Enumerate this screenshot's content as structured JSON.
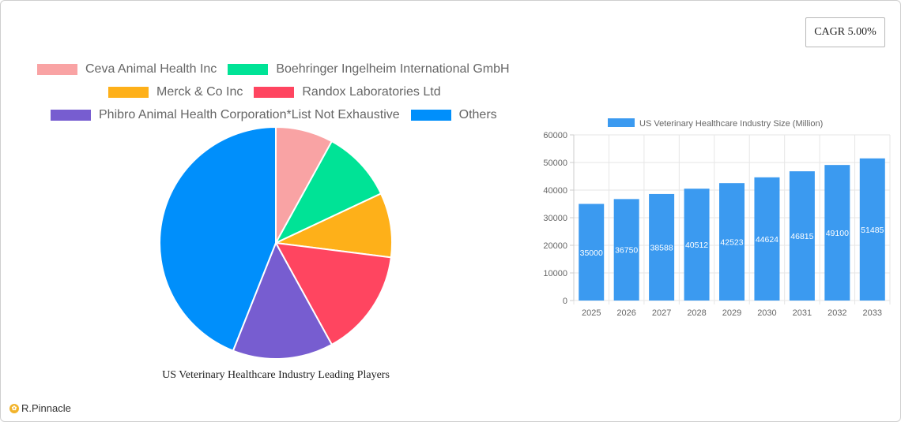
{
  "cagr": {
    "label": "CAGR 5.00%"
  },
  "brand": {
    "name": "R.Pinnacle"
  },
  "chart_data": [
    {
      "type": "pie",
      "title": "US Veterinary Healthcare Industry Leading Players",
      "categories": [
        "Ceva Animal Health Inc",
        "Boehringer Ingelheim International GmbH",
        "Merck & Co  Inc",
        "Randox Laboratories Ltd",
        "Phibro Animal Health Corporation*List Not Exhaustive",
        "Others"
      ],
      "values": [
        8,
        10,
        9,
        15,
        14,
        44
      ],
      "colors": [
        "#f9a3a4",
        "#00e396",
        "#feb019",
        "#ff4560",
        "#775dd0",
        "#008ffb"
      ],
      "legend": "top"
    },
    {
      "type": "bar",
      "series": [
        {
          "name": "US Veterinary Healthcare Industry Size (Million)",
          "values": [
            35000,
            36750,
            38588,
            40512,
            42523,
            44624,
            46815,
            49100,
            51485
          ]
        }
      ],
      "categories": [
        "2025",
        "2026",
        "2027",
        "2028",
        "2029",
        "2030",
        "2031",
        "2032",
        "2033"
      ],
      "ylim": [
        0,
        60000
      ],
      "yticks": [
        0,
        10000,
        20000,
        30000,
        40000,
        50000,
        60000
      ],
      "bar_color": "#3b9af0",
      "grid": true,
      "legend": "top"
    }
  ]
}
